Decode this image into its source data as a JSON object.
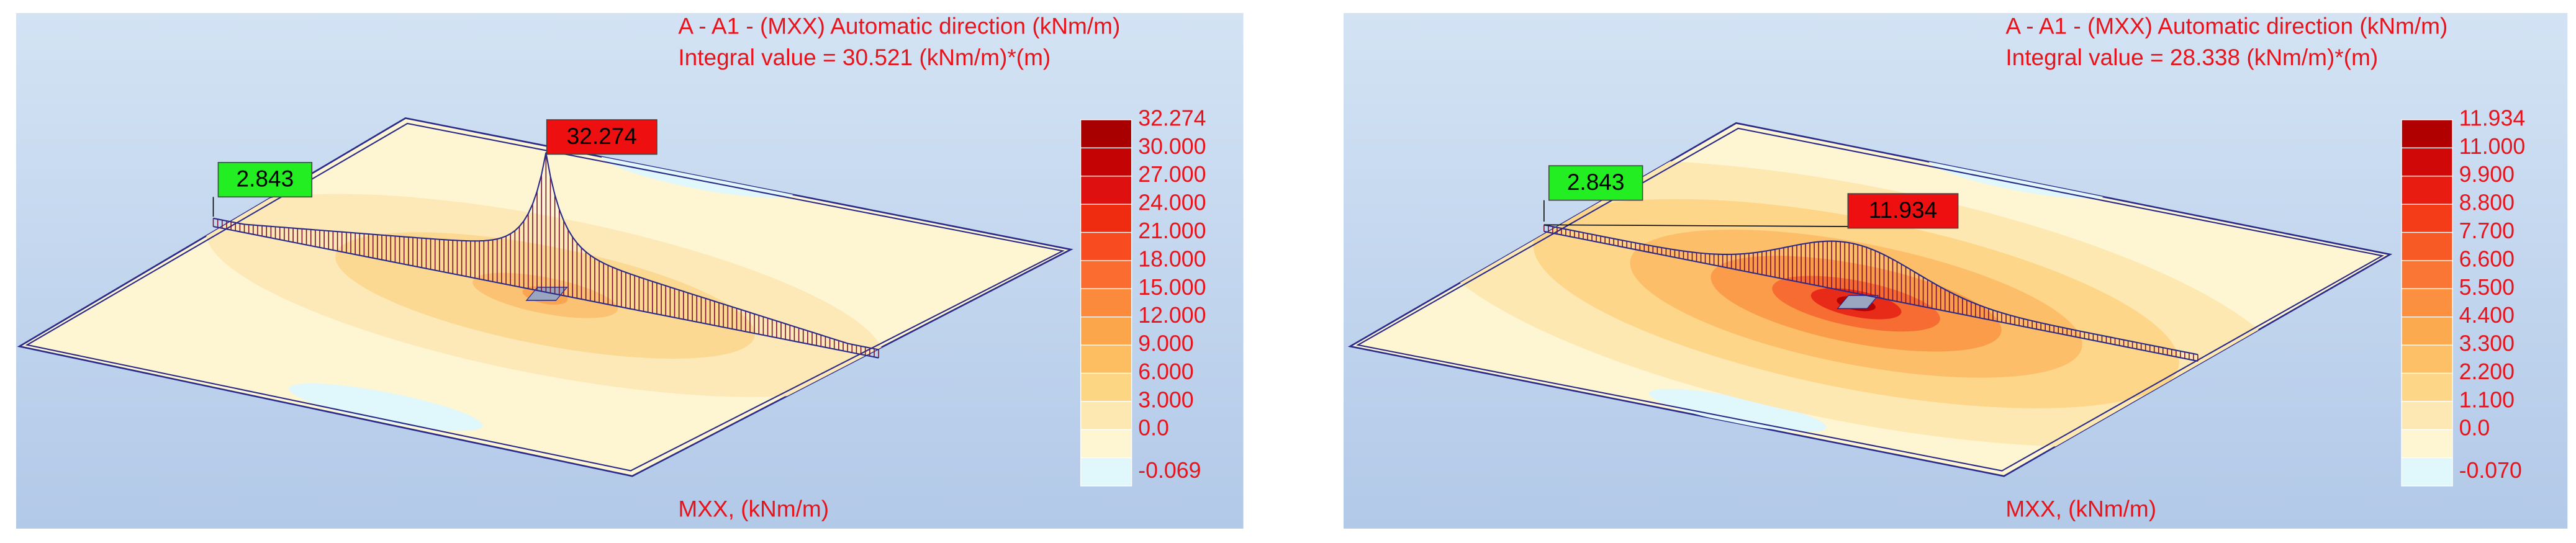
{
  "panels": [
    {
      "title": "A - A1 - (MXX) Automatic direction (kNm/m)",
      "integral": "Integral value = 30.521 (kNm/m)*(m)",
      "min_label": "2.843",
      "max_label": "32.274",
      "legend": [
        {
          "label": "32.274",
          "color": "#a80000"
        },
        {
          "label": "30.000",
          "color": "#c40404"
        },
        {
          "label": "27.000",
          "color": "#de1010"
        },
        {
          "label": "24.000",
          "color": "#f02c10"
        },
        {
          "label": "21.000",
          "color": "#f84c20"
        },
        {
          "label": "18.000",
          "color": "#fa6c30"
        },
        {
          "label": "15.000",
          "color": "#fb8a3c"
        },
        {
          "label": "12.000",
          "color": "#fca64c"
        },
        {
          "label": "9.000",
          "color": "#fdbe62"
        },
        {
          "label": "6.000",
          "color": "#fdd684"
        },
        {
          "label": "3.000",
          "color": "#fde8b2"
        },
        {
          "label": "0.0",
          "color": "#fef5d2"
        },
        {
          "label": "-0.069",
          "color": "#e0f7fb"
        }
      ],
      "axis_label": "MXX, (kNm/m)"
    },
    {
      "title": "A - A1 - (MXX) Automatic direction (kNm/m)",
      "integral": "Integral value = 28.338 (kNm/m)*(m)",
      "min_label": "2.843",
      "max_label": "11.934",
      "legend": [
        {
          "label": "11.934",
          "color": "#b00000"
        },
        {
          "label": "11.000",
          "color": "#d00808"
        },
        {
          "label": "9.900",
          "color": "#e81c10"
        },
        {
          "label": "8.800",
          "color": "#f43c18"
        },
        {
          "label": "7.700",
          "color": "#f85a26"
        },
        {
          "label": "6.600",
          "color": "#fa7634"
        },
        {
          "label": "5.500",
          "color": "#fb9040"
        },
        {
          "label": "4.400",
          "color": "#fcaa50"
        },
        {
          "label": "3.300",
          "color": "#fdc066"
        },
        {
          "label": "2.200",
          "color": "#fdd688"
        },
        {
          "label": "1.100",
          "color": "#fde8b4"
        },
        {
          "label": "0.0",
          "color": "#fef5d2"
        },
        {
          "label": "-0.070",
          "color": "#e0f7fb"
        }
      ],
      "axis_label": "MXX, (kNm/m)"
    }
  ]
}
